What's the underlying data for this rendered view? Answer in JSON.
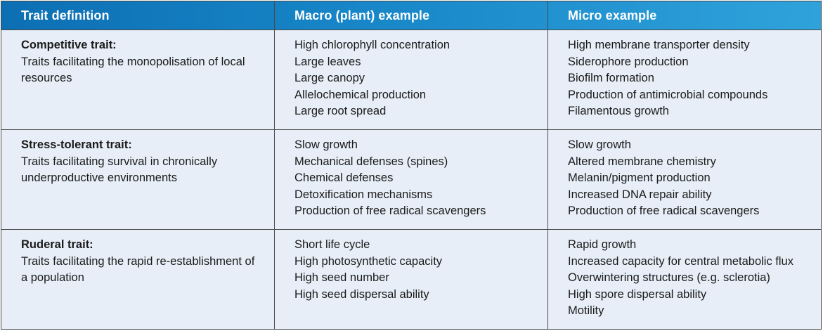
{
  "headers": {
    "trait": "Trait definition",
    "macro": "Macro (plant) example",
    "micro": "Micro example"
  },
  "rows": [
    {
      "title": "Competitive trait:",
      "description": "Traits facilitating the monopolisation of local resources",
      "macro": [
        "High chlorophyll concentration",
        "Large leaves",
        "Large canopy",
        "Allelochemical production",
        "Large root spread"
      ],
      "micro": [
        "High membrane transporter density",
        "Siderophore production",
        "Biofilm formation",
        "Production of antimicrobial compounds",
        "Filamentous growth"
      ]
    },
    {
      "title": "Stress-tolerant trait:",
      "description": "Traits facilitating survival in chronically underproductive environments",
      "macro": [
        "Slow growth",
        "Mechanical defenses (spines)",
        "Chemical defenses",
        "Detoxification mechanisms",
        "Production of free radical scavengers"
      ],
      "micro": [
        "Slow growth",
        "Altered membrane chemistry",
        "Melanin/pigment production",
        "Increased DNA repair ability",
        "Production of free radical scavengers"
      ]
    },
    {
      "title": "Ruderal trait:",
      "description": "Traits facilitating the rapid re-establishment of a population",
      "macro": [
        "Short life cycle",
        "High photosynthetic capacity",
        "High seed number",
        "High seed dispersal ability"
      ],
      "micro": [
        "Rapid growth",
        "Increased capacity for central metabolic flux",
        "Overwintering structures (e.g. sclerotia)",
        "High spore dispersal ability",
        "Motility"
      ]
    }
  ]
}
